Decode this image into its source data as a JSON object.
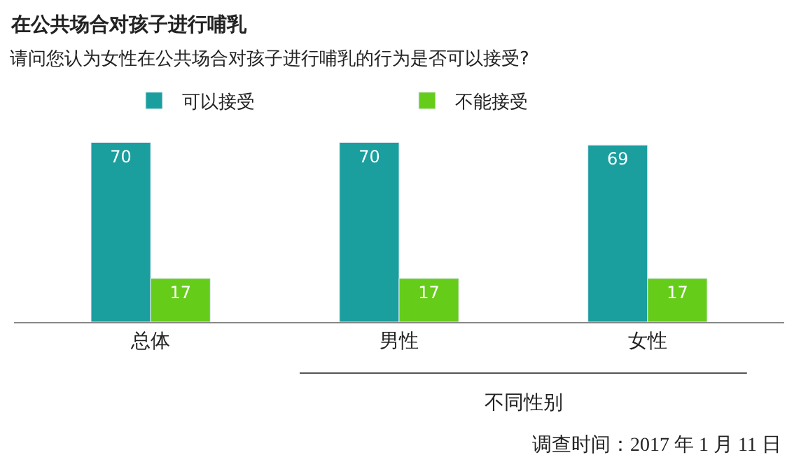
{
  "chart_data": {
    "type": "bar",
    "title": "在公共场合对孩子进行哺乳",
    "subtitle": "请问您认为女性在公共场合对孩子进行哺乳的行为是否可以接受?",
    "categories": [
      "总体",
      "男性",
      "女性"
    ],
    "series": [
      {
        "name": "可以接受",
        "color": "#1a9e9e",
        "values": [
          70,
          70,
          69
        ]
      },
      {
        "name": "不能接受",
        "color": "#66cc1a",
        "values": [
          17,
          17,
          17
        ]
      }
    ],
    "annotations": [
      "不同性别",
      "调查时间：2017 年 1 月 11 日"
    ],
    "data_labels": true,
    "legend": "top",
    "tick_labels": "x"
  }
}
